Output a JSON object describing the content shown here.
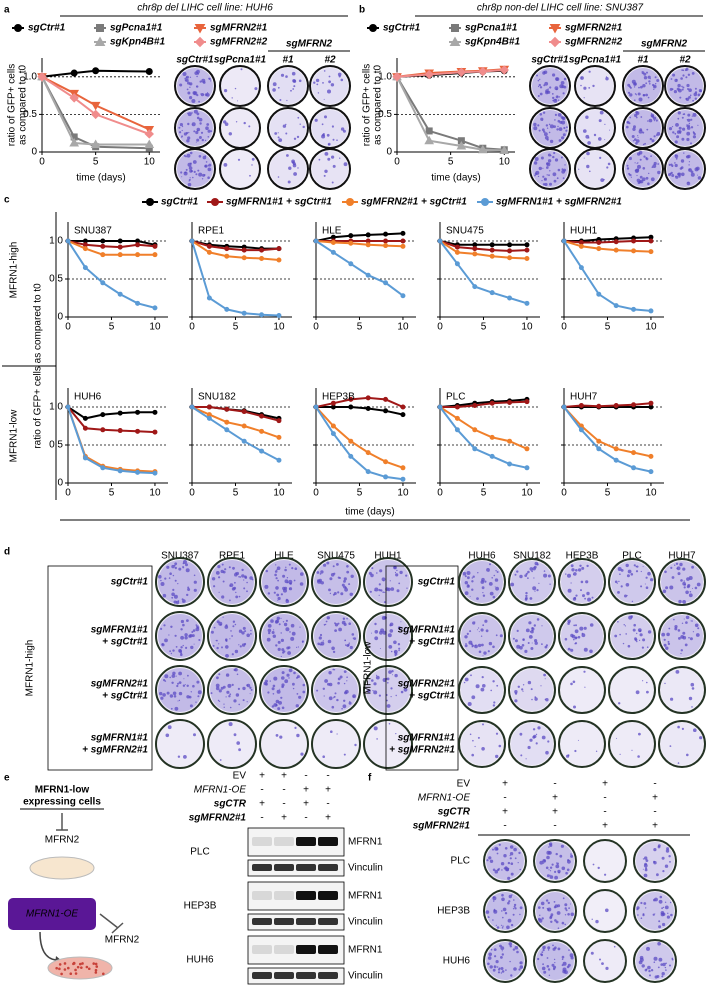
{
  "chart_data": [
    {
      "type": "line",
      "panel": "a",
      "title": "chr8p del LIHC cell line: HUH6",
      "x": [
        0,
        3,
        5,
        10
      ],
      "series": [
        {
          "name": "sgCtr#1",
          "color": "#000000",
          "marker": "circle",
          "values": [
            1,
            1.05,
            1.08,
            1.07
          ]
        },
        {
          "name": "sgPcna1#1",
          "color": "#7a7a7a",
          "marker": "square",
          "values": [
            1,
            0.2,
            0.07,
            0.05
          ]
        },
        {
          "name": "sgKpn4B#1",
          "color": "#a8a8a8",
          "marker": "triangle",
          "values": [
            1,
            0.12,
            0.1,
            0.1
          ]
        },
        {
          "name": "sgMFRN2#1",
          "color": "#e8643c",
          "marker": "triangle-down",
          "values": [
            1,
            0.78,
            0.62,
            0.3
          ]
        },
        {
          "name": "sgMFRN2#2",
          "color": "#f08c8c",
          "marker": "diamond",
          "values": [
            1,
            0.72,
            0.5,
            0.24
          ]
        }
      ],
      "xlim": [
        0,
        11
      ],
      "ylim": [
        0,
        1.25
      ],
      "xticks": [
        0,
        5,
        10
      ],
      "yticks": [
        0,
        0.5,
        {
          "value": 1,
          "label": "1.0"
        }
      ],
      "hlines": [
        0.5,
        1
      ],
      "xlabel": "time (days)",
      "ylabel": [
        "ratio of GFP+ cells",
        "as compared to t0"
      ],
      "plate_columns": [
        "sgCtr#1",
        "sgPcna1#1",
        "#1",
        "#2"
      ],
      "plate_group": "sgMFRN2"
    },
    {
      "type": "line",
      "panel": "b",
      "title": "chr8p non-del LIHC cell line: SNU387",
      "x": [
        0,
        3,
        6,
        8,
        10
      ],
      "series": [
        {
          "name": "sgCtr#1",
          "color": "#000000",
          "marker": "circle",
          "values": [
            1,
            1.02,
            1.05,
            1.07,
            1.08
          ]
        },
        {
          "name": "sgPcna1#1",
          "color": "#7a7a7a",
          "marker": "square",
          "values": [
            1,
            0.28,
            0.15,
            0.05,
            0.03
          ]
        },
        {
          "name": "sgKpn4B#1",
          "color": "#a8a8a8",
          "marker": "triangle",
          "values": [
            1,
            0.15,
            0.08,
            0.03,
            0.02
          ]
        },
        {
          "name": "sgMFRN2#1",
          "color": "#e8643c",
          "marker": "triangle-down",
          "values": [
            1,
            1.05,
            1.07,
            1.08,
            1.1
          ]
        },
        {
          "name": "sgMFRN2#2",
          "color": "#f08c8c",
          "marker": "diamond",
          "values": [
            1,
            1.03,
            1.06,
            1.07,
            1.09
          ]
        }
      ],
      "xlim": [
        0,
        11
      ],
      "ylim": [
        0,
        1.25
      ],
      "xticks": [
        0,
        5,
        10
      ],
      "yticks": [
        0,
        0.5,
        {
          "value": 1,
          "label": "1.0"
        }
      ],
      "hlines": [
        0.5,
        1
      ],
      "xlabel": "time (days)",
      "ylabel": [
        "ratio of GFP+ cells",
        "as compared to t0"
      ],
      "plate_columns": [
        "sgCtr#1",
        "sgPcna1#1",
        "#1",
        "#2"
      ],
      "plate_group": "sgMFRN2"
    },
    {
      "type": "line-grid",
      "panel": "c",
      "legend": [
        {
          "name": "sgCtr#1",
          "color": "#000000"
        },
        {
          "name": "sgMFRN1#1 + sgCtr#1",
          "color": "#a01818"
        },
        {
          "name": "sgMFRN2#1 + sgCtr#1",
          "color": "#f07f2a"
        },
        {
          "name": "sgMFRN1#1 + sgMFRN2#1",
          "color": "#5b9bd5"
        }
      ],
      "x": [
        0,
        2,
        4,
        6,
        8,
        10
      ],
      "xlim": [
        0,
        11.5
      ],
      "ylim": [
        0,
        1.25
      ],
      "xticks": [
        0,
        5,
        10
      ],
      "yticks": [
        0,
        0.5,
        {
          "value": 1,
          "label": "1.0"
        }
      ],
      "hlines": [
        0.5,
        1
      ],
      "xlabel": "time (days)",
      "ylabel": "ratio of GFP+ cells as compared to t0",
      "row_labels": [
        "MFRN1-high",
        "MFRN1-low"
      ],
      "charts": [
        {
          "title": "SNU387",
          "values": [
            [
              1,
              1,
              1,
              1,
              1,
              0.95
            ],
            [
              1,
              0.95,
              0.93,
              0.92,
              0.95,
              0.93
            ],
            [
              1,
              0.9,
              0.82,
              0.82,
              0.82,
              0.82
            ],
            [
              1,
              0.65,
              0.45,
              0.3,
              0.18,
              0.12
            ]
          ]
        },
        {
          "title": "RPE1",
          "values": [
            [
              1,
              0.95,
              0.93,
              0.92,
              0.9,
              0.9
            ],
            [
              1,
              0.93,
              0.9,
              0.88,
              0.88,
              0.9
            ],
            [
              1,
              0.85,
              0.8,
              0.78,
              0.77,
              0.75
            ],
            [
              1,
              0.25,
              0.1,
              0.05,
              0.03,
              0.02
            ]
          ]
        },
        {
          "title": "HLE",
          "values": [
            [
              1,
              1.05,
              1.07,
              1.08,
              1.09,
              1.1
            ],
            [
              1,
              1,
              1,
              1,
              1,
              1
            ],
            [
              1,
              0.98,
              0.97,
              0.95,
              0.94,
              0.93
            ],
            [
              1,
              0.85,
              0.7,
              0.55,
              0.45,
              0.28
            ]
          ]
        },
        {
          "title": "SNU475",
          "values": [
            [
              1,
              0.95,
              0.95,
              0.95,
              0.95,
              0.95
            ],
            [
              1,
              0.92,
              0.9,
              0.88,
              0.87,
              0.88
            ],
            [
              1,
              0.85,
              0.83,
              0.8,
              0.78,
              0.77
            ],
            [
              1,
              0.7,
              0.4,
              0.32,
              0.25,
              0.18
            ]
          ]
        },
        {
          "title": "HUH1",
          "values": [
            [
              1,
              1,
              1.02,
              1.03,
              1.04,
              1.05
            ],
            [
              1,
              0.98,
              0.98,
              0.99,
              1,
              1
            ],
            [
              1,
              0.93,
              0.9,
              0.88,
              0.87,
              0.86
            ],
            [
              1,
              0.65,
              0.3,
              0.15,
              0.1,
              0.08
            ]
          ]
        },
        {
          "title": "HUH6",
          "values": [
            [
              1,
              0.85,
              0.9,
              0.92,
              0.93,
              0.93
            ],
            [
              1,
              0.72,
              0.7,
              0.69,
              0.68,
              0.67
            ],
            [
              1,
              0.35,
              0.22,
              0.18,
              0.16,
              0.15
            ],
            [
              1,
              0.33,
              0.2,
              0.16,
              0.14,
              0.13
            ]
          ]
        },
        {
          "title": "SNU182",
          "values": [
            [
              1,
              1,
              0.97,
              0.95,
              0.9,
              0.85
            ],
            [
              1,
              1,
              0.97,
              0.94,
              0.88,
              0.82
            ],
            [
              1,
              0.9,
              0.8,
              0.75,
              0.68,
              0.6
            ],
            [
              1,
              0.85,
              0.7,
              0.55,
              0.42,
              0.3
            ]
          ]
        },
        {
          "title": "HEP3B",
          "values": [
            [
              1,
              1,
              1,
              0.98,
              0.95,
              0.9
            ],
            [
              1,
              1.05,
              1.1,
              1.12,
              1.1,
              1
            ],
            [
              1,
              0.75,
              0.55,
              0.4,
              0.28,
              0.2
            ],
            [
              1,
              0.65,
              0.35,
              0.15,
              0.08,
              0.05
            ]
          ]
        },
        {
          "title": "PLC",
          "values": [
            [
              1,
              1.02,
              1.05,
              1.07,
              1.08,
              1.1
            ],
            [
              1,
              1,
              1.02,
              1.05,
              1.06,
              1.07
            ],
            [
              1,
              0.85,
              0.7,
              0.6,
              0.55,
              0.45
            ],
            [
              1,
              0.7,
              0.45,
              0.35,
              0.25,
              0.2
            ]
          ]
        },
        {
          "title": "HUH7",
          "values": [
            [
              1,
              1,
              1,
              1,
              1,
              1
            ],
            [
              1,
              1.02,
              1.01,
              1.02,
              1.03,
              1.05
            ],
            [
              1,
              0.75,
              0.55,
              0.45,
              0.4,
              0.35
            ],
            [
              1,
              0.7,
              0.45,
              0.3,
              0.2,
              0.15
            ]
          ]
        }
      ]
    }
  ],
  "panel_d": {
    "letter": "d",
    "groups": [
      {
        "label": "MFRN1-high",
        "columns": [
          "SNU387",
          "RPE1",
          "HLE",
          "SNU475",
          "HUH1"
        ]
      },
      {
        "label": "MFRN1-low",
        "columns": [
          "HUH6",
          "SNU182",
          "HEP3B",
          "PLC",
          "HUH7"
        ]
      }
    ],
    "rows": [
      {
        "lines": [
          "sgCtr#1"
        ],
        "color": "#000000"
      },
      {
        "lines": [
          "sgMFRN1#1",
          "+ sgCtr#1"
        ],
        "color": "#a01818"
      },
      {
        "lines": [
          "sgMFRN2#1",
          "+ sgCtr#1"
        ],
        "color": "#f07f2a"
      },
      {
        "lines": [
          "sgMFRN1#1",
          "+ sgMFRN2#1"
        ],
        "color": "#3a6ea5"
      }
    ]
  },
  "panel_e": {
    "letter": "e",
    "diagram": {
      "cells": [
        "MFRN1-low",
        "expressing cells"
      ],
      "target": "MFRN2",
      "construct": "MFRN1-OE"
    },
    "conditions": [
      {
        "label": "EV",
        "color": "#000000",
        "marks": [
          "+",
          "+",
          "-",
          "-"
        ]
      },
      {
        "label": "MFRN1-OE",
        "color": "#8b1fc7",
        "marks": [
          "-",
          "-",
          "+",
          "+"
        ]
      },
      {
        "label": "sgCTR",
        "color": "#000000",
        "marks": [
          "+",
          "-",
          "+",
          "-"
        ]
      },
      {
        "label": "sgMFRN2#1",
        "color": "#f07f2a",
        "marks": [
          "-",
          "+",
          "-",
          "+"
        ]
      }
    ],
    "blots": [
      {
        "cell_line": "PLC",
        "bands": [
          "MFRN1",
          "Vinculin"
        ]
      },
      {
        "cell_line": "HEP3B",
        "bands": [
          "MFRN1",
          "Vinculin"
        ]
      },
      {
        "cell_line": "HUH6",
        "bands": [
          "MFRN1",
          "Vinculin"
        ]
      }
    ]
  },
  "panel_f": {
    "letter": "f",
    "conditions": [
      {
        "label": "EV",
        "color": "#000000",
        "marks": [
          "+",
          "-",
          "+",
          "-"
        ]
      },
      {
        "label": "MFRN1-OE",
        "color": "#8b1fc7",
        "marks": [
          "-",
          "+",
          "-",
          "+"
        ]
      },
      {
        "label": "sgCTR",
        "color": "#000000",
        "marks": [
          "+",
          "+",
          "-",
          "-"
        ]
      },
      {
        "label": "sgMFRN2#1",
        "color": "#f07f2a",
        "marks": [
          "-",
          "-",
          "+",
          "+"
        ]
      }
    ],
    "cell_lines": [
      "PLC",
      "HEP3B",
      "HUH6"
    ]
  }
}
